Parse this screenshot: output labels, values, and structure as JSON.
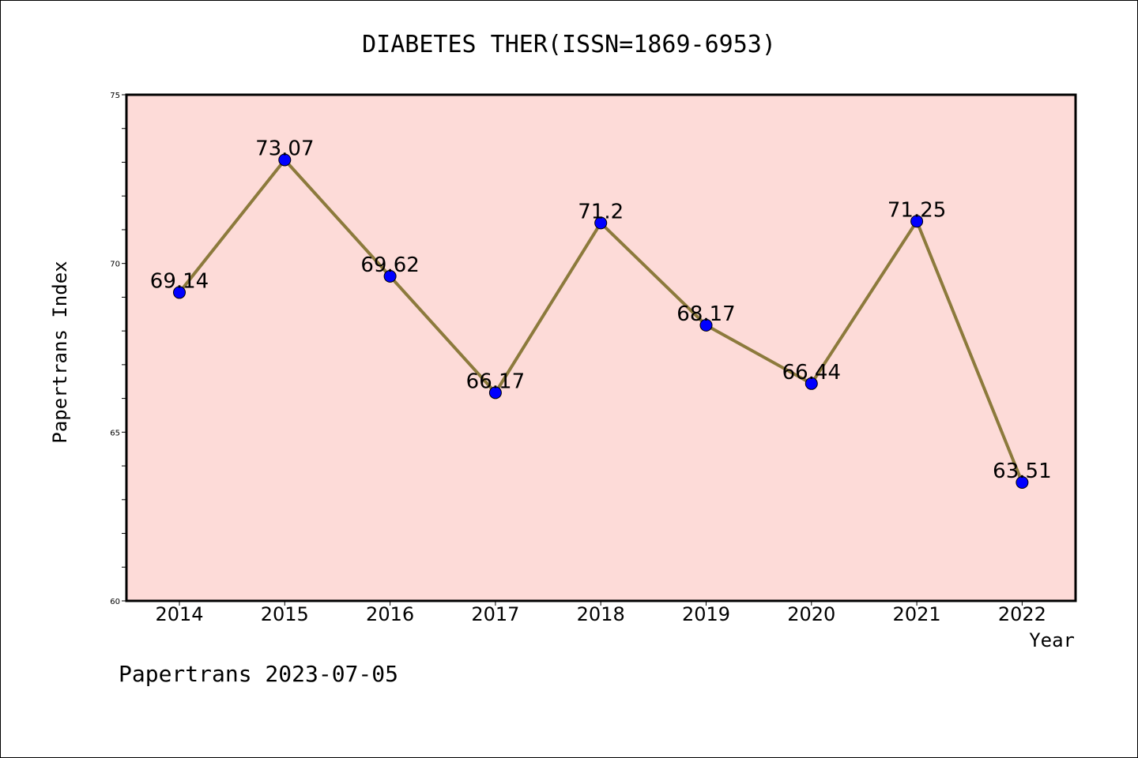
{
  "chart_data": {
    "type": "line",
    "title": "DIABETES THER(ISSN=1869-6953)",
    "xlabel": "Year",
    "ylabel": "Papertrans Index",
    "categories": [
      "2014",
      "2015",
      "2016",
      "2017",
      "2018",
      "2019",
      "2020",
      "2021",
      "2022"
    ],
    "series": [
      {
        "values": [
          69.14,
          73.07,
          69.62,
          66.17,
          71.2,
          68.17,
          66.44,
          71.25,
          63.51
        ],
        "labels": [
          "69.14",
          "73.07",
          "69.62",
          "66.17",
          "71.2",
          "68.17",
          "66.44",
          "71.25",
          "63.51"
        ],
        "line_color": "#8c7a3c",
        "marker_color": "#0000ff"
      }
    ],
    "ylim": [
      60,
      75
    ],
    "yticks": [
      "60",
      "65",
      "70",
      "75"
    ],
    "grid": false,
    "plot_background": "#fddbd8"
  },
  "footer": "Papertrans 2023-07-05"
}
